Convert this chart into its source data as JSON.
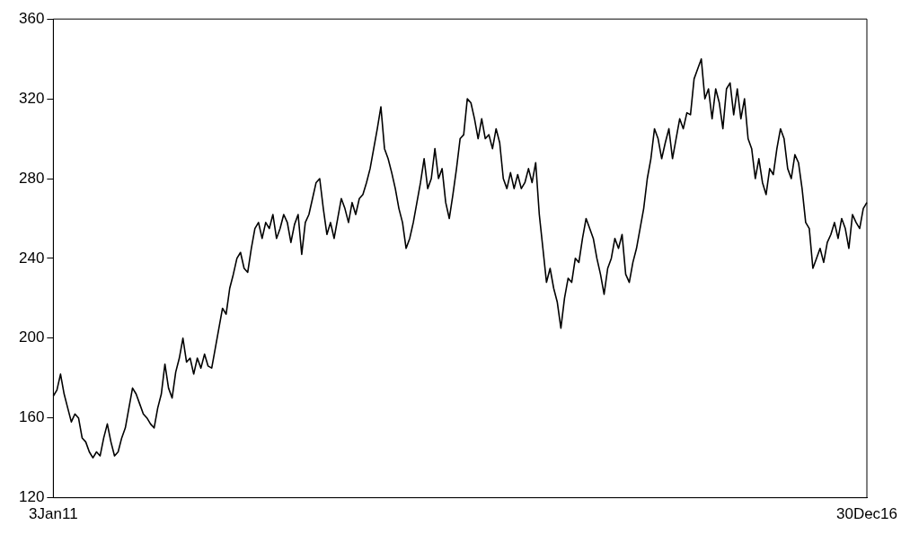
{
  "chart_data": {
    "type": "line",
    "categories": [
      "3Jan11",
      null,
      null,
      null,
      null,
      null,
      null,
      null,
      null,
      null,
      null,
      null,
      null,
      null,
      null,
      null,
      null,
      null,
      null,
      null,
      null,
      null,
      null,
      null,
      null,
      null,
      null,
      null,
      null,
      null,
      null,
      null,
      null,
      null,
      null,
      null,
      null,
      null,
      null,
      null,
      null,
      null,
      null,
      null,
      null,
      null,
      null,
      null,
      null,
      null,
      null,
      null,
      null,
      null,
      null,
      null,
      null,
      null,
      null,
      null,
      null,
      null,
      null,
      null,
      null,
      null,
      null,
      null,
      null,
      null,
      null,
      null,
      null,
      null,
      null,
      null,
      null,
      null,
      null,
      null,
      null,
      null,
      null,
      null,
      null,
      null,
      null,
      null,
      null,
      null,
      null,
      null,
      null,
      null,
      null,
      null,
      null,
      null,
      null,
      null,
      null,
      null,
      null,
      null,
      null,
      null,
      null,
      null,
      null,
      null,
      null,
      null,
      null,
      null,
      null,
      null,
      null,
      null,
      null,
      null,
      null,
      null,
      null,
      null,
      null,
      null,
      null,
      null,
      null,
      null,
      null,
      null,
      null,
      null,
      null,
      null,
      null,
      null,
      null,
      null,
      null,
      null,
      null,
      null,
      null,
      null,
      null,
      null,
      null,
      null,
      null,
      null,
      null,
      null,
      null,
      null,
      null,
      null,
      null,
      null,
      null,
      null,
      null,
      null,
      null,
      null,
      null,
      null,
      null,
      null,
      null,
      null,
      null,
      null,
      null,
      null,
      null,
      null,
      null,
      null,
      null,
      null,
      null,
      null,
      null,
      null,
      null,
      null,
      null,
      null,
      null,
      null,
      null,
      null,
      null,
      null,
      null,
      null,
      null,
      null,
      null,
      null,
      null,
      null,
      null,
      null,
      null,
      null,
      null,
      null,
      null,
      null,
      null,
      null,
      null,
      null,
      null,
      null,
      null,
      null,
      null,
      null,
      null,
      null,
      null,
      null,
      "30Dec16"
    ],
    "series": [
      {
        "color": "#000000",
        "values": [
          171,
          174,
          182,
          172,
          165,
          158,
          162,
          160,
          150,
          148,
          143,
          140,
          143,
          141,
          150,
          157,
          148,
          141,
          143,
          150,
          155,
          165,
          175,
          172,
          167,
          162,
          160,
          157,
          155,
          165,
          172,
          187,
          175,
          170,
          183,
          190,
          200,
          188,
          190,
          182,
          190,
          185,
          192,
          186,
          185,
          195,
          205,
          215,
          212,
          225,
          232,
          240,
          243,
          235,
          233,
          245,
          255,
          258,
          250,
          258,
          255,
          262,
          250,
          255,
          262,
          258,
          248,
          257,
          262,
          242,
          258,
          262,
          270,
          278,
          280,
          265,
          252,
          258,
          250,
          260,
          270,
          265,
          258,
          268,
          262,
          270,
          272,
          278,
          285,
          295,
          305,
          316,
          295,
          290,
          283,
          275,
          265,
          258,
          245,
          250,
          258,
          268,
          278,
          290,
          275,
          280,
          295,
          280,
          285,
          268,
          260,
          272,
          285,
          300,
          302,
          320,
          318,
          310,
          300,
          310,
          300,
          302,
          295,
          305,
          298,
          280,
          275,
          283,
          275,
          282,
          275,
          278,
          285,
          278,
          288,
          262,
          245,
          228,
          235,
          225,
          218,
          205,
          220,
          230,
          228,
          240,
          238,
          250,
          260,
          255,
          250,
          240,
          232,
          222,
          235,
          240,
          250,
          245,
          252,
          232,
          228,
          238,
          245,
          255,
          265,
          280,
          290,
          305,
          300,
          290,
          298,
          305,
          290,
          300,
          310,
          305,
          313,
          312,
          330,
          335,
          340,
          320,
          325,
          310,
          325,
          318,
          305,
          325,
          328,
          312,
          325,
          310,
          320,
          300,
          295,
          280,
          290,
          278,
          272,
          285,
          282,
          295,
          305,
          300,
          285,
          280,
          292,
          288,
          275,
          258,
          255,
          235,
          240,
          245,
          238,
          248,
          252,
          258,
          250,
          260,
          255,
          245,
          262,
          258,
          255,
          265,
          268
        ]
      }
    ],
    "ylim": [
      120,
      360
    ],
    "yticks": [
      120,
      160,
      200,
      240,
      280,
      320,
      360
    ],
    "grid": false,
    "legend": false
  }
}
